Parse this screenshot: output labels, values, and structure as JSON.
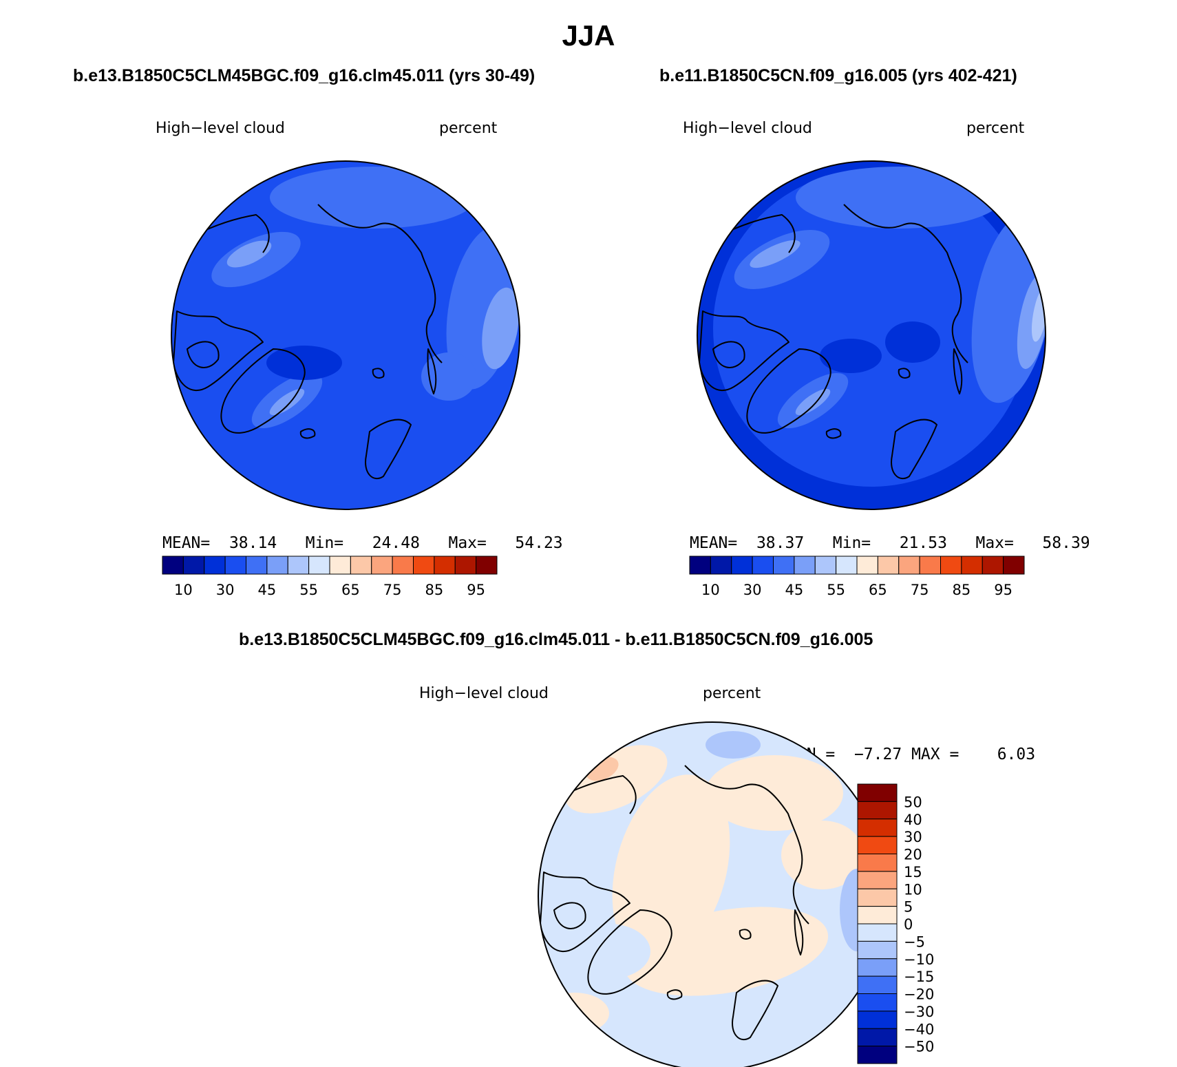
{
  "figure": {
    "title": "JJA",
    "variable": "High−level cloud",
    "units": "percent"
  },
  "colors": {
    "abs_scale": [
      "#00007f",
      "#0018a8",
      "#0030d8",
      "#1a4ef0",
      "#3f70f5",
      "#7a9ff8",
      "#adc6fb",
      "#d6e6fd",
      "#feebd8",
      "#fcc8a8",
      "#fba57e",
      "#f97a4a",
      "#f04a12",
      "#d42e00",
      "#ad1600",
      "#800000"
    ],
    "diff_scale": [
      "#00007f",
      "#0018a8",
      "#0030d8",
      "#1a4ef0",
      "#3f70f5",
      "#7a9ff8",
      "#adc6fb",
      "#d6e6fd",
      "#feebd8",
      "#fcc8a8",
      "#fba57e",
      "#f97a4a",
      "#f04a12",
      "#d42e00",
      "#ad1600",
      "#800000"
    ],
    "land_outline": "#000000"
  },
  "panels": {
    "left": {
      "case": "b.e13.B1850C5CLM45BGC.f09_g16.clm45.011 (yrs 30-49)",
      "stats": {
        "mean_label": "MEAN=",
        "mean": "38.14",
        "min_label": "Min=",
        "min": "24.48",
        "max_label": "Max=",
        "max": "54.23"
      }
    },
    "right": {
      "case": "b.e11.B1850C5CN.f09_g16.005 (yrs 402-421)",
      "stats": {
        "mean_label": "MEAN=",
        "mean": "38.37",
        "min_label": "Min=",
        "min": "21.53",
        "max_label": "Max=",
        "max": "58.39"
      }
    },
    "diff": {
      "case": "b.e13.B1850C5CLM45BGC.f09_g16.clm45.011 - b.e11.B1850C5CN.f09_g16.005",
      "stats": {
        "min_label": "MIN =",
        "min": "−7.27",
        "max_label": "MAX =",
        "max": "6.03"
      }
    }
  },
  "chart_data": [
    {
      "type": "heatmap",
      "projection": "north polar stereographic",
      "title": "b.e13.B1850C5CLM45BGC.f09_g16.clm45.011 (yrs 30-49)",
      "field": "High-level cloud",
      "units": "percent",
      "mean": 38.14,
      "min": 24.48,
      "max": 54.23,
      "colorbar_ticks": [
        "10",
        "30",
        "45",
        "55",
        "65",
        "75",
        "85",
        "95"
      ]
    },
    {
      "type": "heatmap",
      "projection": "north polar stereographic",
      "title": "b.e11.B1850C5CN.f09_g16.005 (yrs 402-421)",
      "field": "High-level cloud",
      "units": "percent",
      "mean": 38.37,
      "min": 21.53,
      "max": 58.39,
      "colorbar_ticks": [
        "10",
        "30",
        "45",
        "55",
        "65",
        "75",
        "85",
        "95"
      ]
    },
    {
      "type": "heatmap",
      "projection": "north polar stereographic",
      "title": "b.e13.B1850C5CLM45BGC.f09_g16.clm45.011 - b.e11.B1850C5CN.f09_g16.005",
      "field": "High-level cloud",
      "units": "percent",
      "min": -7.27,
      "max": 6.03,
      "colorbar_ticks": [
        "50",
        "40",
        "30",
        "20",
        "15",
        "10",
        "5",
        "0",
        "−5",
        "−10",
        "−15",
        "−20",
        "−30",
        "−40",
        "−50"
      ]
    }
  ]
}
